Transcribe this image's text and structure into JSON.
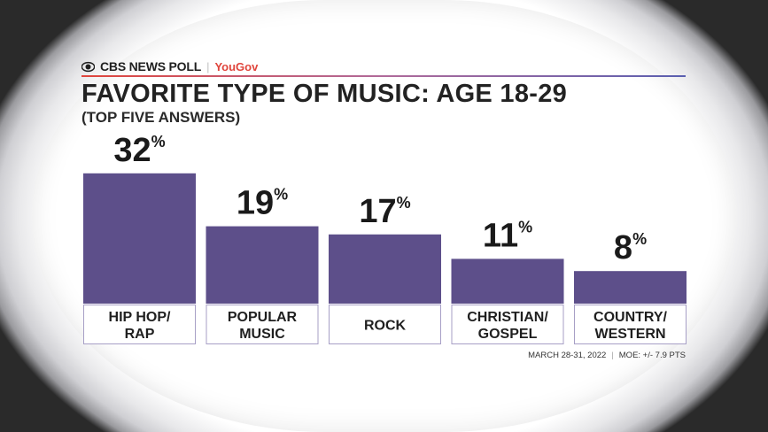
{
  "header": {
    "brand": "CBS NEWS POLL",
    "partner": "YouGov",
    "title": "FAVORITE TYPE OF MUSIC: AGE 18-29",
    "subtitle": "(TOP FIVE ANSWERS)"
  },
  "footer": {
    "date": "MARCH 28-31, 2022",
    "moe": "MOE: +/- 7.9 PTS"
  },
  "colors": {
    "bar": "#5d4f8a",
    "label_box_border": "#a79fc6"
  },
  "chart_data": {
    "type": "bar",
    "categories": [
      [
        "HIP HOP/",
        "RAP"
      ],
      [
        "POPULAR",
        "MUSIC"
      ],
      [
        "ROCK"
      ],
      [
        "CHRISTIAN/",
        "GOSPEL"
      ],
      [
        "COUNTRY/",
        "WESTERN"
      ]
    ],
    "values": [
      32,
      19,
      17,
      11,
      8
    ],
    "value_suffix": "%",
    "title": "FAVORITE TYPE OF MUSIC: AGE 18-29",
    "subtitle": "(TOP FIVE ANSWERS)",
    "grid": false,
    "legend": "none"
  }
}
